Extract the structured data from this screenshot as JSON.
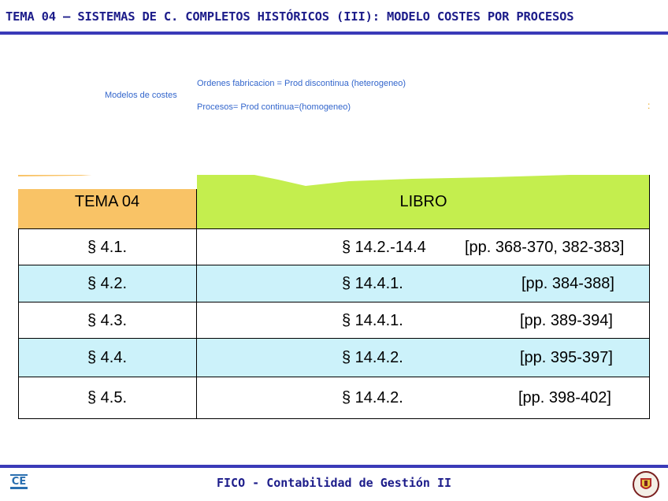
{
  "header": {
    "title": "TEMA 04 – SISTEMAS DE C. COMPLETOS HISTÓRICOS (III): MODELO COSTES POR PROCESOS"
  },
  "models": {
    "label": "Modelos de costes",
    "lines": [
      "Ordenes fabricacion = Prod discontinua (heterogeneo)",
      "Procesos= Prod continua=(homogeneo)"
    ],
    "stray_mark": ":"
  },
  "table": {
    "headers": {
      "tema": "TEMA 04",
      "libro": "LIBRO"
    },
    "colors": {
      "tema_header": "#f9c366",
      "libro_header": "#c4ee4e",
      "alt_row": "#ccf2fa"
    },
    "rows": [
      {
        "tema": "§  4.1.",
        "section": "§  14.2.-14.4",
        "pages": "[pp. 368-370, 382-383]"
      },
      {
        "tema": "§  4.2.",
        "section": "§  14.4.1.",
        "pages": "[pp. 384-388]"
      },
      {
        "tema": "§  4.3.",
        "section": "§  14.4.1.",
        "pages": "[pp. 389-394]"
      },
      {
        "tema": "§  4.4.",
        "section": "§  14.4.2.",
        "pages": "[pp. 395-397]"
      },
      {
        "tema": "§  4.5.",
        "section": "§  14.4.2.",
        "pages": "[pp. 398-402]"
      }
    ]
  },
  "footer": {
    "text": "FICO - Contabilidad de Gestión II"
  },
  "logos": {
    "left": "department-logo",
    "right": "university-crest-logo"
  }
}
